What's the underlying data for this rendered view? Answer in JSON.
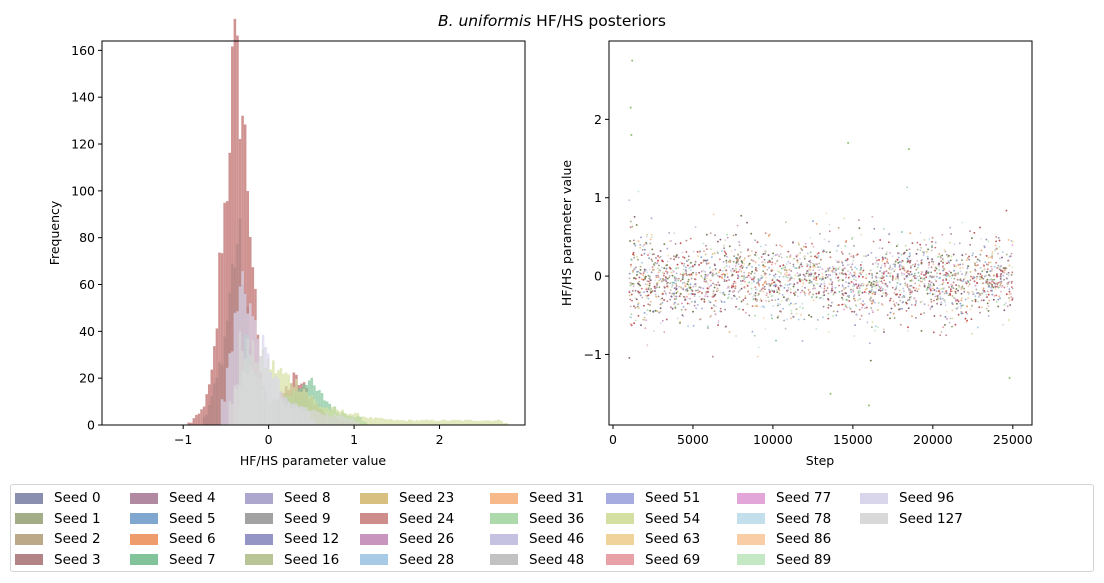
{
  "figure": {
    "title_italic": "B. uniformis",
    "title_rest": " HF/HS posteriors"
  },
  "chart_data": [
    {
      "type": "histogram",
      "xlabel": "HF/HS parameter value",
      "ylabel": "Frequency",
      "xlim": [
        -1.95,
        3.0
      ],
      "ylim": [
        0,
        164
      ],
      "xticks": [
        -1,
        0,
        1,
        2
      ],
      "xtick_labels": [
        "−1",
        "0",
        "1",
        "2"
      ],
      "yticks": [
        0,
        20,
        40,
        60,
        80,
        100,
        120,
        140,
        160
      ],
      "grid": false,
      "description_data": {
        "dominant_series": "Seed 24",
        "main_mode_x": -0.37,
        "main_mode_peak": 156,
        "secondary_mode_x": 0.35,
        "secondary_mode_height": 22,
        "x_extent": [
          -1.7,
          2.8
        ]
      },
      "series": [
        {
          "name": "Seed 24",
          "peaks": [
            [
              -0.9,
              2
            ],
            [
              -0.8,
              5
            ],
            [
              -0.72,
              12
            ],
            [
              -0.66,
              22
            ],
            [
              -0.61,
              40
            ],
            [
              -0.56,
              78
            ],
            [
              -0.52,
              90
            ],
            [
              -0.48,
              108
            ],
            [
              -0.44,
              143
            ],
            [
              -0.41,
              150
            ],
            [
              -0.38,
              156
            ],
            [
              -0.35,
              140
            ],
            [
              -0.32,
              144
            ],
            [
              -0.29,
              123
            ],
            [
              -0.26,
              114
            ],
            [
              -0.22,
              90
            ],
            [
              -0.18,
              68
            ],
            [
              -0.14,
              40
            ],
            [
              -0.1,
              24
            ],
            [
              -0.05,
              14
            ],
            [
              0.0,
              9
            ],
            [
              0.1,
              10
            ],
            [
              0.2,
              15
            ],
            [
              0.3,
              20
            ],
            [
              0.4,
              17
            ],
            [
              0.5,
              12
            ],
            [
              0.6,
              7
            ],
            [
              0.7,
              4
            ],
            [
              0.85,
              2
            ],
            [
              1.0,
              1
            ]
          ]
        },
        {
          "name": "Seed 3",
          "peaks": [
            [
              -0.7,
              8
            ],
            [
              -0.6,
              20
            ],
            [
              -0.5,
              40
            ],
            [
              -0.45,
              58
            ],
            [
              -0.4,
              72
            ],
            [
              -0.35,
              80
            ],
            [
              -0.3,
              66
            ],
            [
              -0.25,
              46
            ],
            [
              -0.2,
              26
            ],
            [
              -0.1,
              12
            ],
            [
              0.0,
              8
            ],
            [
              0.2,
              12
            ],
            [
              0.35,
              16
            ],
            [
              0.5,
              9
            ],
            [
              0.7,
              4
            ]
          ]
        },
        {
          "name": "Seed 7",
          "peaks": [
            [
              -0.3,
              40
            ],
            [
              0.0,
              8
            ],
            [
              0.3,
              14
            ],
            [
              0.45,
              20
            ],
            [
              0.55,
              15
            ],
            [
              0.8,
              6
            ],
            [
              1.1,
              3
            ]
          ]
        },
        {
          "name": "Seed 54",
          "peaks": [
            [
              -0.35,
              35
            ],
            [
              0.4,
              16
            ],
            [
              0.6,
              8
            ],
            [
              1.2,
              3
            ],
            [
              1.5,
              2
            ],
            [
              2.2,
              2
            ],
            [
              2.75,
              2
            ]
          ]
        },
        {
          "name": "Seed 96",
          "peaks": [
            [
              -0.5,
              20
            ],
            [
              -0.3,
              64
            ],
            [
              -0.15,
              40
            ],
            [
              0.2,
              10
            ],
            [
              0.5,
              6
            ]
          ]
        },
        {
          "name": "Seed 127",
          "peaks": [
            [
              -0.4,
              18
            ],
            [
              -0.2,
              22
            ],
            [
              0.0,
              12
            ],
            [
              0.3,
              8
            ],
            [
              0.6,
              5
            ],
            [
              1.0,
              3
            ]
          ]
        }
      ]
    },
    {
      "type": "scatter",
      "xlabel": "Step",
      "ylabel": "HF/HS parameter value",
      "xlim": [
        -250,
        26200
      ],
      "ylim": [
        -1.9,
        3.0
      ],
      "xticks": [
        0,
        5000,
        10000,
        15000,
        20000,
        25000
      ],
      "xtick_labels": [
        "0",
        "5000",
        "10000",
        "15000",
        "20000",
        "25000"
      ],
      "yticks": [
        -1,
        0,
        1,
        2
      ],
      "ytick_labels": [
        "−1",
        "0",
        "1",
        "2"
      ],
      "grid": false,
      "description_data": {
        "step_range": [
          1000,
          25000
        ],
        "typical_band": [
          -0.6,
          0.5
        ],
        "outliers": [
          [
            1200,
            2.75
          ],
          [
            1100,
            2.15
          ],
          [
            18500,
            1.62
          ],
          [
            14700,
            1.7
          ],
          [
            1150,
            1.8
          ],
          [
            16000,
            -1.65
          ],
          [
            13600,
            -1.5
          ],
          [
            24800,
            -1.3
          ]
        ]
      }
    }
  ],
  "legend": {
    "location": "bottom",
    "ncol": 9,
    "entries": [
      {
        "label": "Seed 0",
        "color": "#8a8fb0"
      },
      {
        "label": "Seed 1",
        "color": "#a3ae88"
      },
      {
        "label": "Seed 2",
        "color": "#bba987"
      },
      {
        "label": "Seed 3",
        "color": "#b28485"
      },
      {
        "label": "Seed 4",
        "color": "#b18aa2"
      },
      {
        "label": "Seed 5",
        "color": "#7fa7cf"
      },
      {
        "label": "Seed 6",
        "color": "#ee9c6b"
      },
      {
        "label": "Seed 7",
        "color": "#82c39a"
      },
      {
        "label": "Seed 8",
        "color": "#ada6cd"
      },
      {
        "label": "Seed 9",
        "color": "#a2a2a2"
      },
      {
        "label": "Seed 12",
        "color": "#9495c4"
      },
      {
        "label": "Seed 16",
        "color": "#b9c597"
      },
      {
        "label": "Seed 23",
        "color": "#d7c080"
      },
      {
        "label": "Seed 24",
        "color": "#cc8d8b"
      },
      {
        "label": "Seed 26",
        "color": "#c895bf"
      },
      {
        "label": "Seed 28",
        "color": "#a7cbe6"
      },
      {
        "label": "Seed 31",
        "color": "#f8b98a"
      },
      {
        "label": "Seed 36",
        "color": "#acdaab"
      },
      {
        "label": "Seed 46",
        "color": "#c5c1e0"
      },
      {
        "label": "Seed 48",
        "color": "#c2c2c2"
      },
      {
        "label": "Seed 51",
        "color": "#a6abe0"
      },
      {
        "label": "Seed 54",
        "color": "#d4e0a1"
      },
      {
        "label": "Seed 63",
        "color": "#efd39b"
      },
      {
        "label": "Seed 69",
        "color": "#e9a1a8"
      },
      {
        "label": "Seed 77",
        "color": "#e3a6d8"
      },
      {
        "label": "Seed 78",
        "color": "#c2dfeb"
      },
      {
        "label": "Seed 86",
        "color": "#f9cda5"
      },
      {
        "label": "Seed 89",
        "color": "#c4e8c3"
      },
      {
        "label": "Seed 96",
        "color": "#d9d6ec"
      },
      {
        "label": "Seed 127",
        "color": "#d9d9d9"
      }
    ]
  }
}
